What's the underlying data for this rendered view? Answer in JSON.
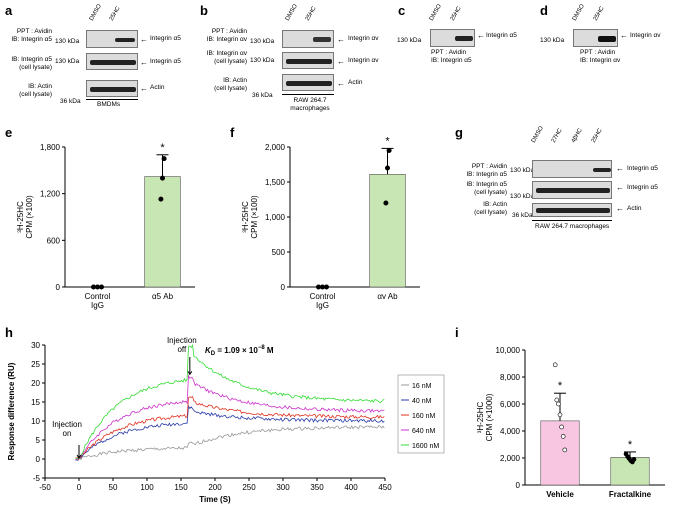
{
  "panels": {
    "a": {
      "letter": "a",
      "lanes": [
        "DMSO",
        "25HC"
      ],
      "rows": [
        {
          "label": "PPT : Avidin\nIB: Integrin α5",
          "kda": "130 kDa",
          "band": "Integrin α5"
        },
        {
          "label": "IB: Integrin α5\n(cell lysate)",
          "kda": "130 kDa",
          "band": "Integrin α5"
        },
        {
          "label": "IB: Actin\n(cell lysate)",
          "kda": "36 kDa",
          "band": "Actin"
        }
      ],
      "cell": "BMDMs"
    },
    "b": {
      "letter": "b",
      "lanes": [
        "DMSO",
        "25HC"
      ],
      "rows": [
        {
          "label": "PPT : Avidin\nIB: Integrin αv",
          "kda": "130 kDa",
          "band": "Integrin αv"
        },
        {
          "label": "IB: Integrin αv\n(cell lysate)",
          "kda": "130 kDa",
          "band": "Integrin αv"
        },
        {
          "label": "IB: Actin\n(cell lysate)",
          "kda": "36 kDa",
          "band": "Actin"
        }
      ],
      "cell": "RAW 264.7\nmacrophages"
    },
    "c": {
      "letter": "c",
      "lanes": [
        "DMSO",
        "25HC"
      ],
      "kda": "130 kDa",
      "band": "Integrin α5",
      "caption": "PPT : Avidin\nIB: Integrin α5"
    },
    "d": {
      "letter": "d",
      "lanes": [
        "DMSO",
        "25HC"
      ],
      "kda": "130 kDa",
      "band": "Integrin αv",
      "caption": "PPT : Avidin\nIB: Integrin αv"
    },
    "g": {
      "letter": "g",
      "lanes": [
        "DMSO",
        "27HC",
        "4βHC",
        "25HC"
      ],
      "rows": [
        {
          "label": "PPT : Avidin\nIB: Integrin α5",
          "kda": "130 kDa",
          "band": "Integrin α5"
        },
        {
          "label": "IB: Integrin α5\n(cell lysate)",
          "kda": "130 kDa",
          "band": "Integrin α5"
        },
        {
          "label": "IB: Actin\n(cell lysate)",
          "kda": "36 kDa",
          "band": "Actin"
        }
      ],
      "cell": "RAW 264.7 macrophages"
    }
  },
  "chart_data": [
    {
      "id": "e",
      "type": "bar",
      "letter": "e",
      "categories": [
        "Control\nIgG",
        "α5 Ab"
      ],
      "values": [
        0,
        1420
      ],
      "error": [
        0,
        280
      ],
      "points": [
        [
          0,
          0,
          0
        ],
        [
          1130,
          1400,
          1650
        ]
      ],
      "ylim": [
        0,
        1800
      ],
      "yticks": [
        0,
        600,
        1200,
        1800
      ],
      "ylabel": "³H-25HC\nCPM (×100)",
      "annotation": "*",
      "bar_color": "#c8e6b4"
    },
    {
      "id": "f",
      "type": "bar",
      "letter": "f",
      "categories": [
        "Control\nIgG",
        "αv Ab"
      ],
      "values": [
        0,
        1610
      ],
      "error": [
        0,
        370
      ],
      "points": [
        [
          0,
          0,
          0
        ],
        [
          1200,
          1700,
          1950
        ]
      ],
      "ylim": [
        0,
        2000
      ],
      "yticks": [
        0,
        500,
        1000,
        1500,
        2000
      ],
      "ylabel": "³H-25HC\nCPM (×100)",
      "annotation": "*",
      "bar_color": "#c8e6b4"
    },
    {
      "id": "h",
      "type": "line",
      "letter": "h",
      "xlabel": "Time (S)",
      "ylabel": "Response difference (RU)",
      "xlim": [
        -50,
        450
      ],
      "ylim": [
        -5,
        30
      ],
      "xticks": [
        -50,
        0,
        50,
        100,
        150,
        200,
        250,
        300,
        350,
        400,
        450
      ],
      "yticks": [
        -5,
        0,
        5,
        10,
        15,
        20,
        25,
        30
      ],
      "kd_text": "K",
      "kd_sub": "D",
      "kd_value": " = 1.09 × 10",
      "kd_exp": "−8",
      "kd_unit": " M",
      "annotations": [
        {
          "text": "Injection\non",
          "x": 0,
          "y": 0
        },
        {
          "text": "Injection\noff",
          "x": 163,
          "y": 22
        }
      ],
      "legend_title": "",
      "series": [
        {
          "name": "16 nM",
          "color": "#999999",
          "plateau": 3,
          "end": 8.5
        },
        {
          "name": "40 nM",
          "color": "#2a3aa8",
          "plateau": 10,
          "end": 10
        },
        {
          "name": "160 nM",
          "color": "#e03020",
          "plateau": 12,
          "end": 11
        },
        {
          "name": "640 nM",
          "color": "#cc33cc",
          "plateau": 16,
          "end": 12.5
        },
        {
          "name": "1600 nM",
          "color": "#33dd33",
          "plateau": 22,
          "end": 15
        }
      ]
    },
    {
      "id": "i",
      "type": "bar",
      "letter": "i",
      "categories": [
        "Vehicle",
        "Fractalkine"
      ],
      "values": [
        4750,
        2050
      ],
      "error": [
        2050,
        400
      ],
      "points": [
        [
          8900,
          6300,
          6000,
          5200,
          4300,
          3600,
          2600
        ],
        [
          2300,
          2100,
          1950,
          1800,
          1700,
          1900
        ]
      ],
      "ylim": [
        0,
        10000
      ],
      "yticks": [
        0,
        2000,
        4000,
        6000,
        8000,
        10000
      ],
      "ylabel": "³H-25HC\nCPM (×1000)",
      "annotation": "*",
      "bar_colors": [
        "#f8c6e0",
        "#c8e6b4"
      ]
    }
  ]
}
